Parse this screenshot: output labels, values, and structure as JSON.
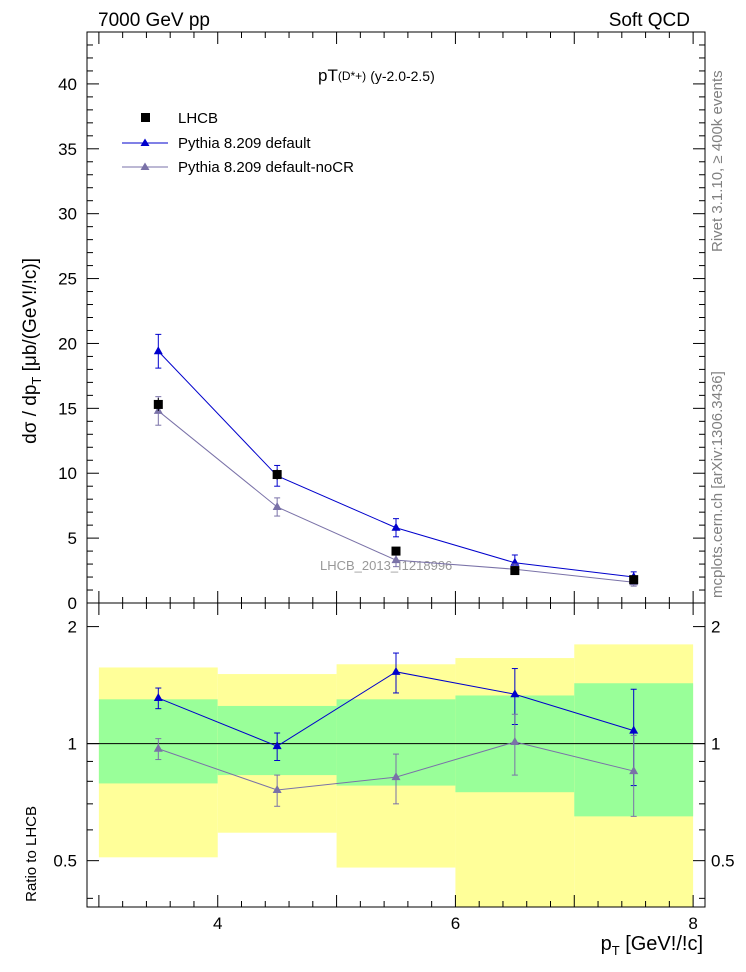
{
  "header": {
    "left": "7000 GeV pp",
    "right": "Soft QCD"
  },
  "side_labels": {
    "right_top": "Rivet 3.1.10, ≥ 400k events",
    "right_bottom": "mcplots.cern.ch [arXiv:1306.3436]"
  },
  "watermark": "LHCB_2013_I1218996",
  "colors": {
    "data": "#000000",
    "default": "#0000cc",
    "nocr": "#7a72a8",
    "band_green": "#99ff99",
    "band_yellow": "#ffff99"
  },
  "chart_data": [
    {
      "type": "line",
      "title_main": "pT",
      "title_sub": "(D*+)",
      "title_rest": "(y-2.0-2.5)",
      "ylabel": "dσ / dp_T [μb/(GeV!/!c)]",
      "ylim": [
        0,
        44
      ],
      "xlim": [
        2.9,
        8.1
      ],
      "y_ticks": [
        0,
        5,
        10,
        15,
        20,
        25,
        30,
        35,
        40
      ],
      "y_tick_labels": [
        "0",
        "5",
        "10",
        "15",
        "20",
        "25",
        "30",
        "35",
        "40"
      ],
      "legend_position": "top-left",
      "series": [
        {
          "name": "LHCB",
          "marker": "square",
          "x": [
            3.5,
            4.5,
            5.5,
            6.5,
            7.5
          ],
          "y": [
            15.3,
            9.9,
            4.0,
            2.5,
            1.8
          ],
          "err": [
            0.5,
            0.4,
            0.2,
            0.15,
            0.1
          ]
        },
        {
          "name": "Pythia 8.209 default",
          "marker": "triangle",
          "x": [
            3.5,
            4.5,
            5.5,
            6.5,
            7.5
          ],
          "y": [
            19.4,
            9.8,
            5.8,
            3.1,
            2.0
          ],
          "err": [
            1.3,
            0.8,
            0.7,
            0.6,
            0.4
          ]
        },
        {
          "name": "Pythia 8.209 default-noCR",
          "marker": "triangle",
          "x": [
            3.5,
            4.5,
            5.5,
            6.5,
            7.5
          ],
          "y": [
            14.8,
            7.4,
            3.3,
            2.6,
            1.6
          ],
          "err": [
            1.1,
            0.7,
            0.5,
            0.4,
            0.3
          ]
        }
      ]
    },
    {
      "type": "line",
      "ylabel": "Ratio to LHCB",
      "xlabel": "p_T [GeV!/!c]",
      "xlim": [
        2.9,
        8.1
      ],
      "ylim": [
        0.38,
        2.3
      ],
      "y_ticks": [
        0.5,
        1,
        2
      ],
      "y_tick_labels": [
        "0.5",
        "1",
        "2"
      ],
      "x_ticks": [
        4,
        6,
        8
      ],
      "x_tick_labels": [
        "4",
        "6",
        "8"
      ],
      "bands": {
        "x_edges": [
          3,
          4,
          5,
          6,
          7,
          8
        ],
        "green_low": [
          0.79,
          0.83,
          0.78,
          0.75,
          0.65
        ],
        "green_high": [
          1.3,
          1.25,
          1.3,
          1.33,
          1.43
        ],
        "yellow_low": [
          0.51,
          0.59,
          0.48,
          0.37,
          0.36
        ],
        "yellow_high": [
          1.57,
          1.51,
          1.6,
          1.66,
          1.8
        ]
      },
      "series": [
        {
          "name": "Pythia 8.209 default",
          "x": [
            3.5,
            4.5,
            5.5,
            6.5,
            7.5
          ],
          "y": [
            1.31,
            0.985,
            1.53,
            1.34,
            1.08
          ],
          "err": [
            0.08,
            0.08,
            0.18,
            0.22,
            0.3
          ]
        },
        {
          "name": "Pythia 8.209 default-noCR",
          "x": [
            3.5,
            4.5,
            5.5,
            6.5,
            7.5
          ],
          "y": [
            0.97,
            0.76,
            0.82,
            1.01,
            0.85
          ],
          "err": [
            0.06,
            0.07,
            0.12,
            0.18,
            0.2
          ]
        }
      ]
    }
  ]
}
